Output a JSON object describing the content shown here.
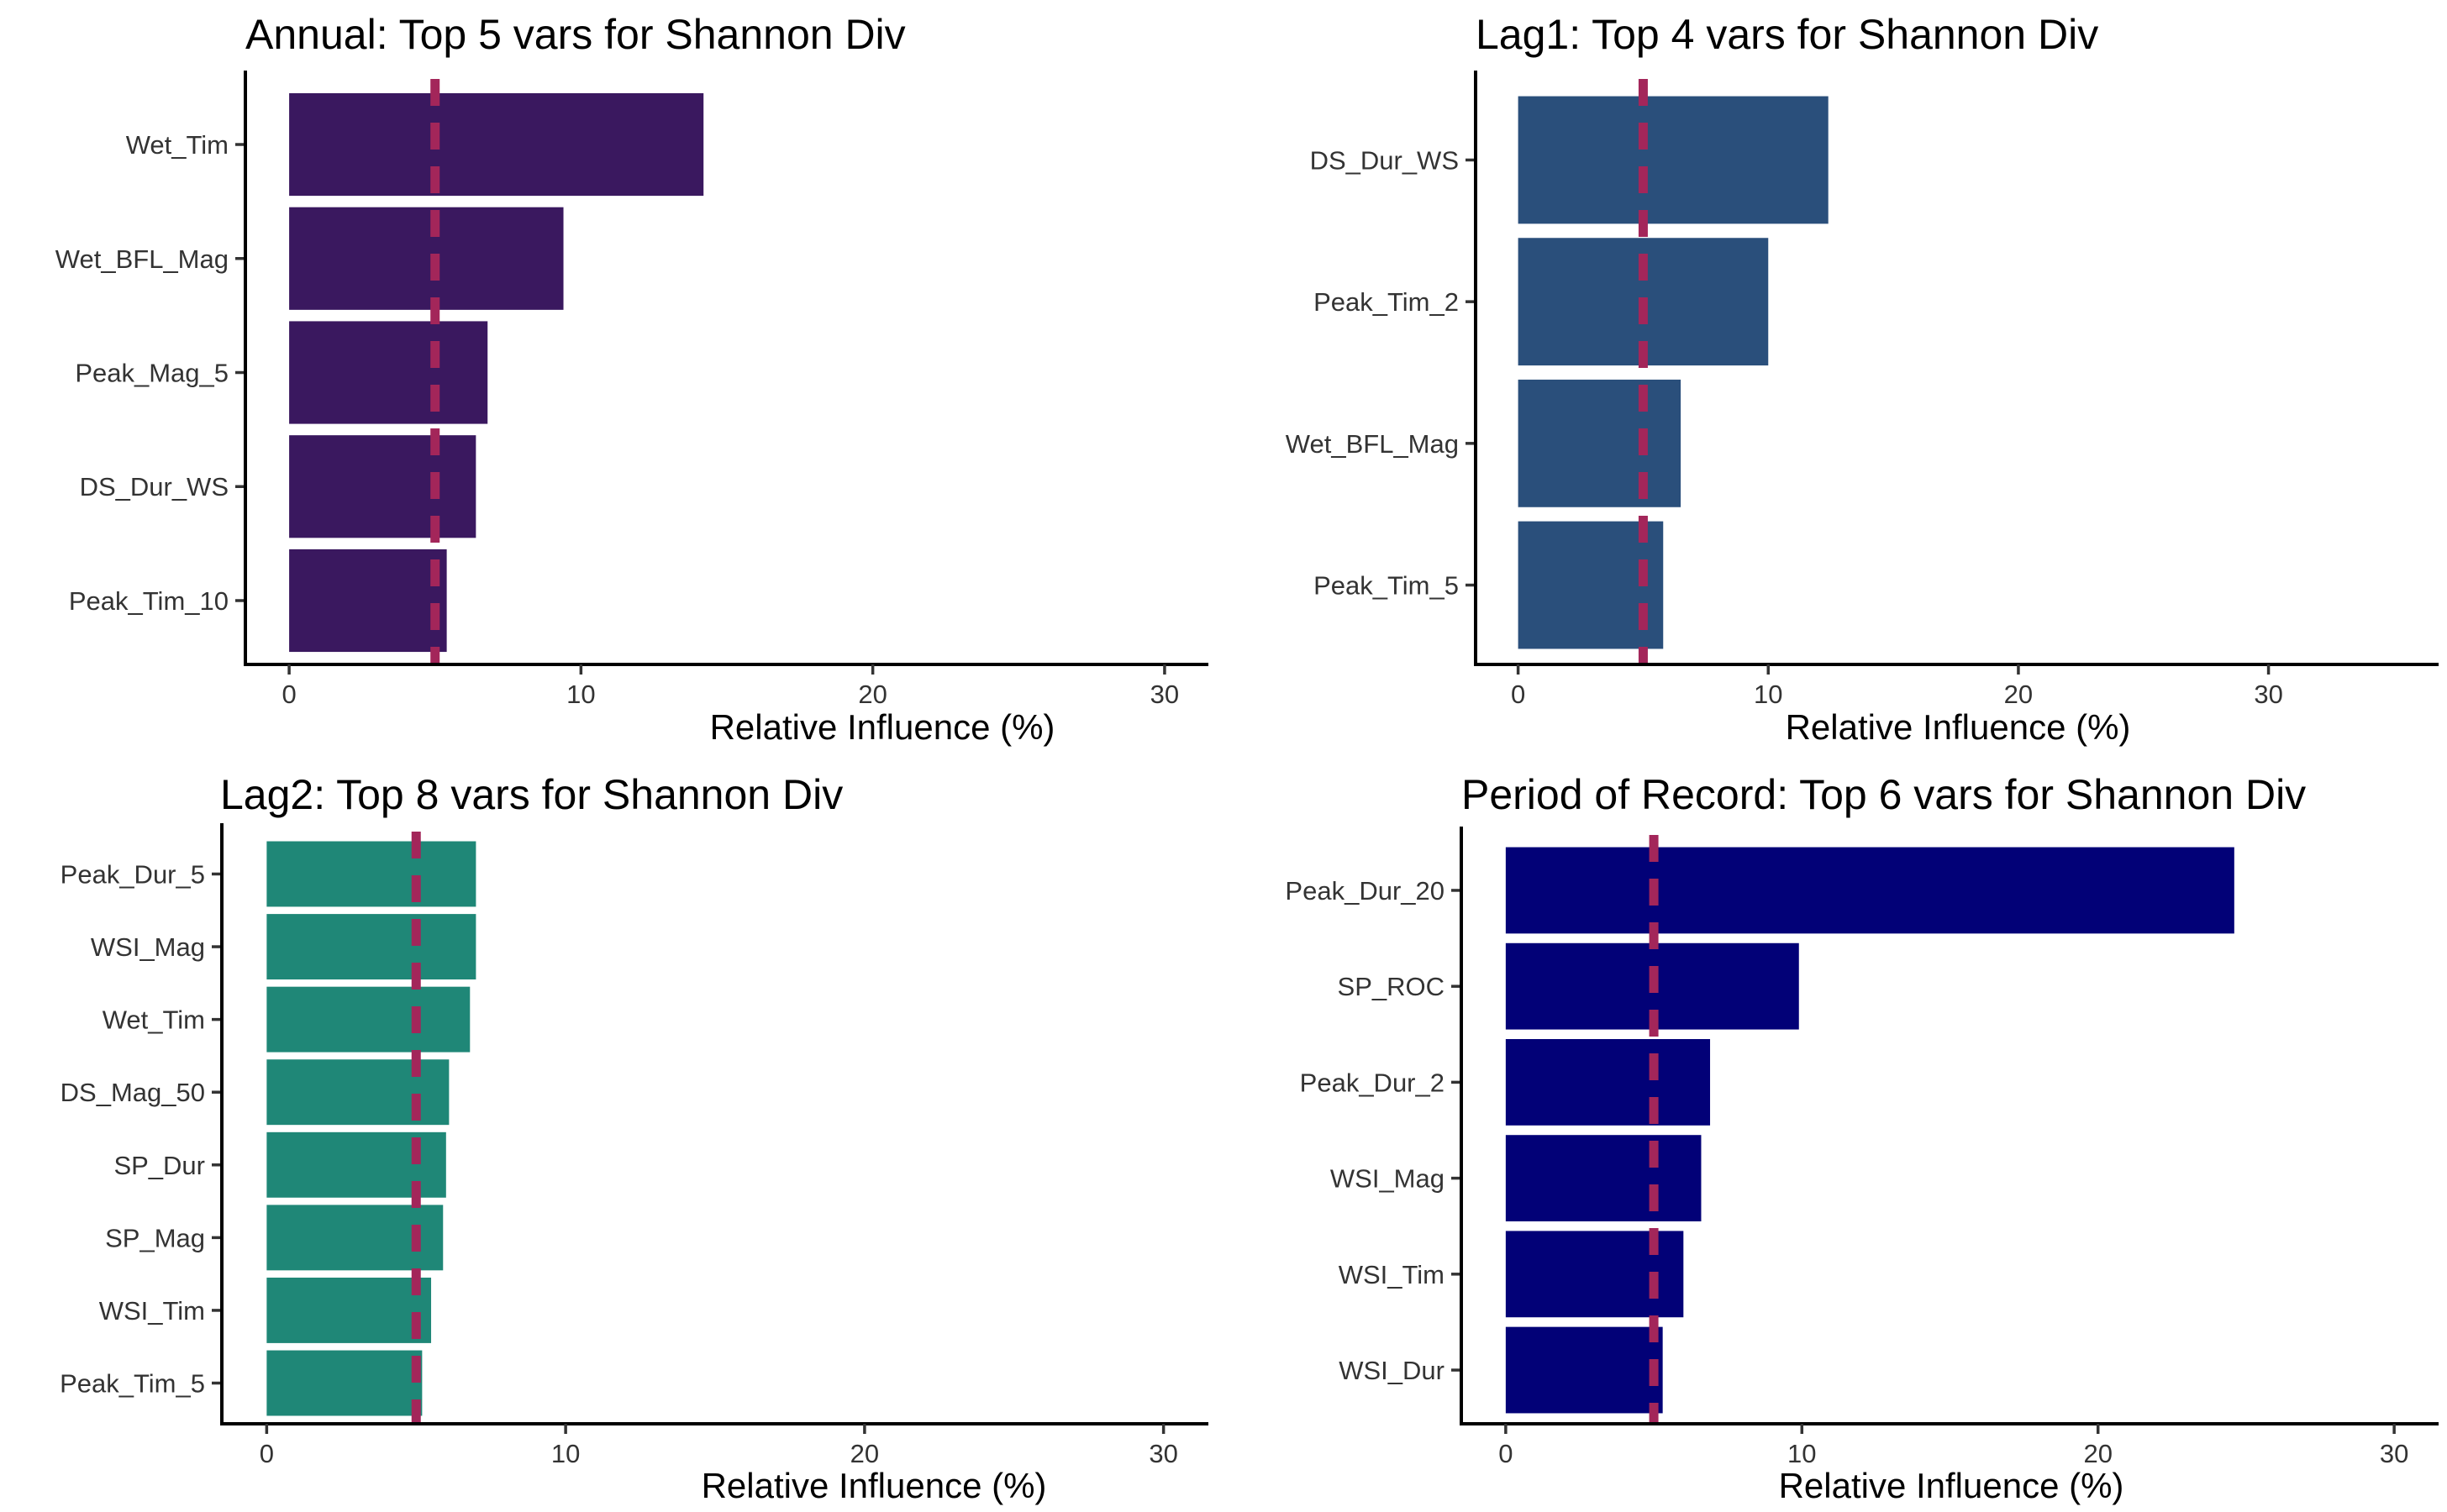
{
  "figure": {
    "title_color": "#000000",
    "reference_line_color": "#A3265A"
  },
  "chart_data": [
    {
      "type": "bar",
      "orientation": "horizontal",
      "title": "Annual: Top 5 vars for Shannon Div",
      "xlabel": "Relative Influence (%)",
      "ylabel": "",
      "categories": [
        "Wet_Tim",
        "Wet_BFL_Mag",
        "Peak_Mag_5",
        "DS_Dur_WS",
        "Peak_Tim_10"
      ],
      "values": [
        14.2,
        9.4,
        6.8,
        6.4,
        5.4
      ],
      "xlim": [
        -1.5,
        31.5
      ],
      "xticks": [
        0,
        10,
        20,
        30
      ],
      "reference_line": 5,
      "bar_color": "#3A185F",
      "grid": false
    },
    {
      "type": "bar",
      "orientation": "horizontal",
      "title": "Lag1: Top 4 vars for Shannon Div",
      "xlabel": "Relative Influence (%)",
      "ylabel": "",
      "categories": [
        "DS_Dur_WS",
        "Peak_Tim_2",
        "Wet_BFL_Mag",
        "Peak_Tim_5"
      ],
      "values": [
        12.4,
        10.0,
        6.5,
        5.8
      ],
      "xlim": [
        -1.7,
        36.8
      ],
      "xticks": [
        0,
        10,
        20,
        30
      ],
      "reference_line": 5,
      "bar_color": "#2A4F7B",
      "grid": false
    },
    {
      "type": "bar",
      "orientation": "horizontal",
      "title": "Lag2: Top 8 vars for Shannon Div",
      "xlabel": "Relative Influence (%)",
      "ylabel": "",
      "categories": [
        "Peak_Dur_5",
        "WSI_Mag",
        "Wet_Tim",
        "DS_Mag_50",
        "SP_Dur",
        "SP_Mag",
        "WSI_Tim",
        "Peak_Tim_5"
      ],
      "values": [
        7.0,
        7.0,
        6.8,
        6.1,
        6.0,
        5.9,
        5.5,
        5.2
      ],
      "xlim": [
        -1.5,
        31.5
      ],
      "xticks": [
        0,
        10,
        20,
        30
      ],
      "reference_line": 5,
      "bar_color": "#1F8777",
      "grid": false
    },
    {
      "type": "bar",
      "orientation": "horizontal",
      "title": "Period of Record: Top 6 vars for Shannon Div",
      "xlabel": "Relative Influence (%)",
      "ylabel": "",
      "categories": [
        "Peak_Dur_20",
        "SP_ROC",
        "Peak_Dur_2",
        "WSI_Mag",
        "WSI_Tim",
        "WSI_Dur"
      ],
      "values": [
        24.6,
        9.9,
        6.9,
        6.6,
        6.0,
        5.3
      ],
      "xlim": [
        -1.5,
        31.5
      ],
      "xticks": [
        0,
        10,
        20,
        30
      ],
      "reference_line": 5,
      "bar_color": "#020177",
      "grid": false
    }
  ]
}
